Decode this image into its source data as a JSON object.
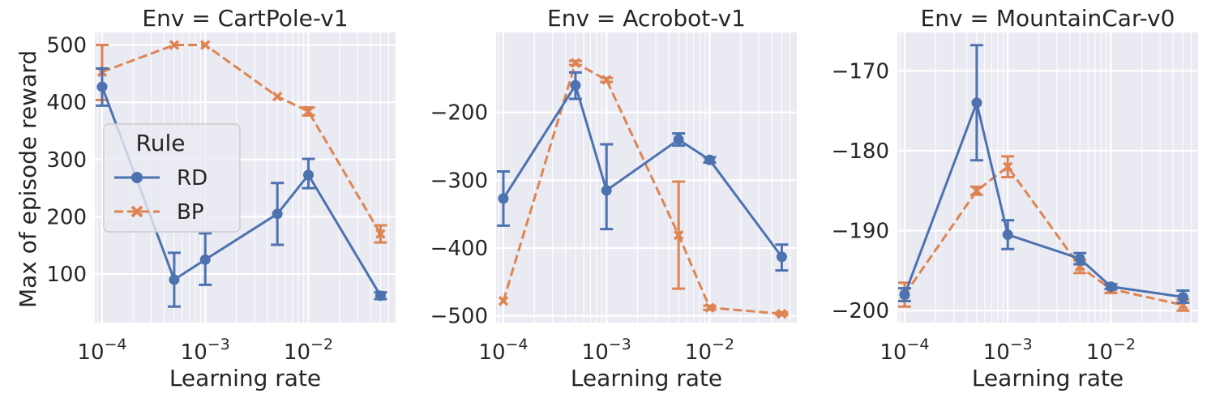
{
  "figure": {
    "xlabel": "Learning rate",
    "ylabel": "Max of episode reward"
  },
  "legend": {
    "title": "Rule",
    "placement": "center-left of first panel",
    "entries": [
      {
        "name": "RD",
        "color": "#4c72b0",
        "marker": "circle",
        "dash": "solid"
      },
      {
        "name": "BP",
        "color": "#dd8452",
        "marker": "x",
        "dash": "dashed"
      }
    ]
  },
  "chart_data": [
    {
      "type": "line",
      "title": "Env = CartPole-v1",
      "xscale": "log",
      "xlim": [
        8.5e-05,
        0.07
      ],
      "ylim": [
        15,
        522
      ],
      "x_ticks": [
        0.0001,
        0.001,
        0.01
      ],
      "x_tick_labels": [
        "10−4",
        "10−3",
        "10−2"
      ],
      "y_ticks": [
        100,
        200,
        300,
        400,
        500
      ],
      "y_tick_labels": [
        "100",
        "200",
        "300",
        "400",
        "500"
      ],
      "grid": true,
      "series": [
        {
          "name": "RD",
          "x": [
            0.0001,
            0.0005,
            0.001,
            0.005,
            0.01,
            0.05
          ],
          "y": [
            427,
            90,
            125,
            205,
            273,
            62
          ],
          "err_low": [
            394,
            43,
            81,
            151,
            250,
            56
          ],
          "err_high": [
            459,
            137,
            171,
            259,
            301,
            68
          ]
        },
        {
          "name": "BP",
          "x": [
            0.0001,
            0.0005,
            0.001,
            0.005,
            0.01,
            0.05
          ],
          "y": [
            453,
            500,
            500,
            410,
            384,
            170
          ],
          "err_low": [
            404,
            500,
            500,
            410,
            377,
            155
          ],
          "err_high": [
            500,
            500,
            500,
            410,
            391,
            185
          ]
        }
      ]
    },
    {
      "type": "line",
      "title": "Env = Acrobot-v1",
      "xscale": "log",
      "xlim": [
        8.5e-05,
        0.07
      ],
      "ylim": [
        -510,
        -82
      ],
      "x_ticks": [
        0.0001,
        0.001,
        0.01
      ],
      "x_tick_labels": [
        "10−4",
        "10−3",
        "10−2"
      ],
      "y_ticks": [
        -500,
        -400,
        -300,
        -200
      ],
      "y_tick_labels": [
        "−500",
        "−400",
        "−300",
        "−200"
      ],
      "grid": true,
      "series": [
        {
          "name": "RD",
          "x": [
            0.0001,
            0.0005,
            0.001,
            0.005,
            0.01,
            0.05
          ],
          "y": [
            -327,
            -160,
            -315,
            -240,
            -270,
            -413
          ],
          "err_low": [
            -367,
            -180,
            -372,
            -249,
            -274,
            -433
          ],
          "err_high": [
            -287,
            -141,
            -247,
            -231,
            -266,
            -395
          ]
        },
        {
          "name": "BP",
          "x": [
            0.0001,
            0.0005,
            0.001,
            0.005,
            0.01,
            0.05
          ],
          "y": [
            -478,
            -127,
            -152,
            -381,
            -488,
            -497
          ],
          "err_low": [
            -478,
            -130,
            -155,
            -460,
            -491,
            -499
          ],
          "err_high": [
            -478,
            -124,
            -149,
            -302,
            -485,
            -495
          ]
        }
      ]
    },
    {
      "type": "line",
      "title": "Env = MountainCar-v0",
      "xscale": "log",
      "xlim": [
        8.5e-05,
        0.07
      ],
      "ylim": [
        -201.5,
        -165.2
      ],
      "x_ticks": [
        0.0001,
        0.001,
        0.01
      ],
      "x_tick_labels": [
        "10−4",
        "10−3",
        "10−2"
      ],
      "y_ticks": [
        -200,
        -190,
        -180,
        -170
      ],
      "y_tick_labels": [
        "−200",
        "−190",
        "−180",
        "−170"
      ],
      "grid": true,
      "series": [
        {
          "name": "RD",
          "x": [
            0.0001,
            0.0005,
            0.001,
            0.005,
            0.01,
            0.05
          ],
          "y": [
            -198,
            -174,
            -190.5,
            -193.5,
            -197,
            -198.3
          ],
          "err_low": [
            -198.8,
            -181.2,
            -192.3,
            -194.2,
            -197.3,
            -199
          ],
          "err_high": [
            -197.2,
            -166.8,
            -188.7,
            -192.8,
            -196.7,
            -197.5
          ]
        },
        {
          "name": "BP",
          "x": [
            0.0001,
            0.0005,
            0.001,
            0.005,
            0.01,
            0.05
          ],
          "y": [
            -198,
            -185,
            -182,
            -194.5,
            -197.3,
            -199.3
          ],
          "err_low": [
            -199.5,
            -185.5,
            -183.3,
            -195.3,
            -197.8,
            -200
          ],
          "err_high": [
            -196.5,
            -184.5,
            -180.7,
            -193.7,
            -196.8,
            -198.6
          ]
        }
      ]
    }
  ]
}
